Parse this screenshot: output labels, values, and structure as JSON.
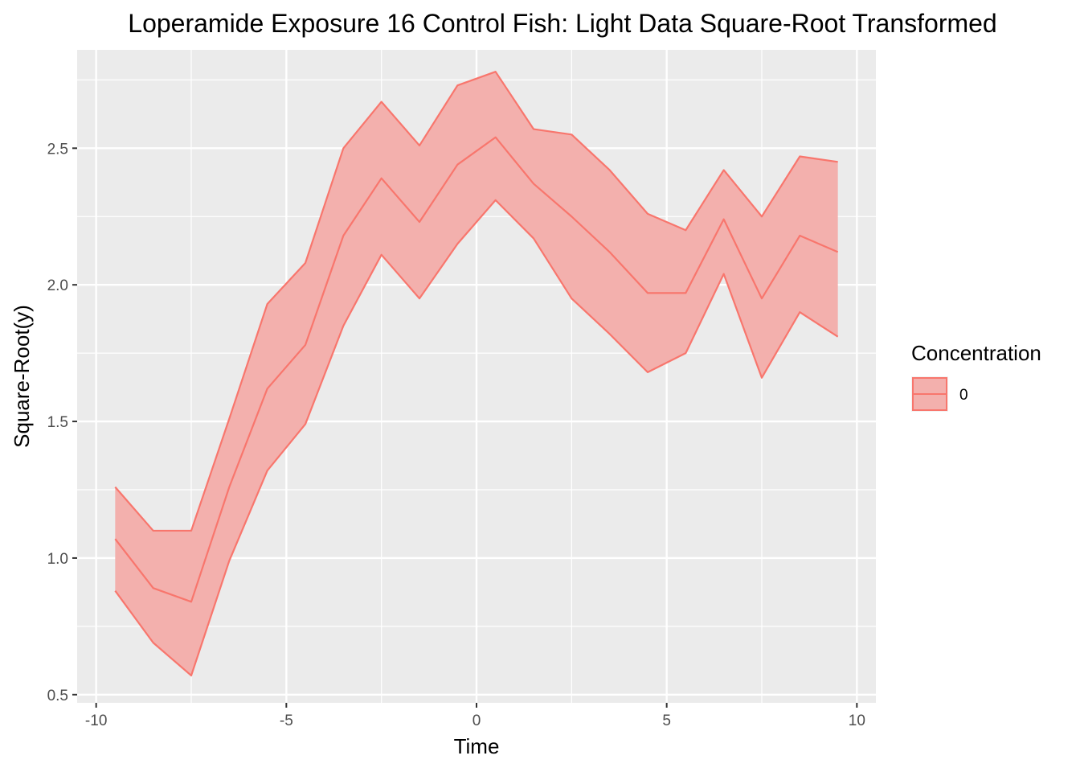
{
  "chart_data": {
    "type": "area",
    "title": "Loperamide Exposure 16 Control Fish: Light Data Square-Root Transformed",
    "xlabel": "Time",
    "ylabel": "Square-Root(y)",
    "xlim": [
      -10.5,
      10.5
    ],
    "ylim": [
      0.47,
      2.86
    ],
    "x_ticks": [
      -10,
      -5,
      0,
      5,
      10
    ],
    "x_tick_labels": [
      "-10",
      "-5",
      "0",
      "5",
      "10"
    ],
    "y_ticks": [
      0.5,
      1.0,
      1.5,
      2.0,
      2.5
    ],
    "y_tick_labels": [
      "0.5",
      "1.0",
      "1.5",
      "2.0",
      "2.5"
    ],
    "grid": true,
    "legend": {
      "title": "Concentration",
      "placement": "right",
      "entries": [
        {
          "label": "0",
          "fill": "#F3B0AD",
          "stroke": "#F8766D"
        }
      ]
    },
    "series": [
      {
        "name": "0",
        "color": "#F8766D",
        "fill": "#F3B0AD",
        "x": [
          -9.5,
          -8.5,
          -7.5,
          -6.5,
          -5.5,
          -4.5,
          -3.5,
          -2.5,
          -1.5,
          -0.5,
          0.5,
          1.5,
          2.5,
          3.5,
          4.5,
          5.5,
          6.5,
          7.5,
          8.5,
          9.5
        ],
        "mean": [
          1.07,
          0.89,
          0.84,
          1.26,
          1.62,
          1.78,
          2.18,
          2.39,
          2.23,
          2.44,
          2.54,
          2.37,
          2.25,
          2.12,
          1.97,
          1.97,
          2.24,
          1.95,
          2.18,
          2.12
        ],
        "upper": [
          1.26,
          1.1,
          1.1,
          1.51,
          1.93,
          2.08,
          2.5,
          2.67,
          2.51,
          2.73,
          2.78,
          2.57,
          2.55,
          2.42,
          2.26,
          2.2,
          2.42,
          2.25,
          2.47,
          2.45
        ],
        "lower": [
          0.88,
          0.69,
          0.57,
          0.99,
          1.32,
          1.49,
          1.85,
          2.11,
          1.95,
          2.15,
          2.31,
          2.17,
          1.95,
          1.82,
          1.68,
          1.75,
          2.04,
          1.66,
          1.9,
          1.81
        ]
      }
    ]
  }
}
